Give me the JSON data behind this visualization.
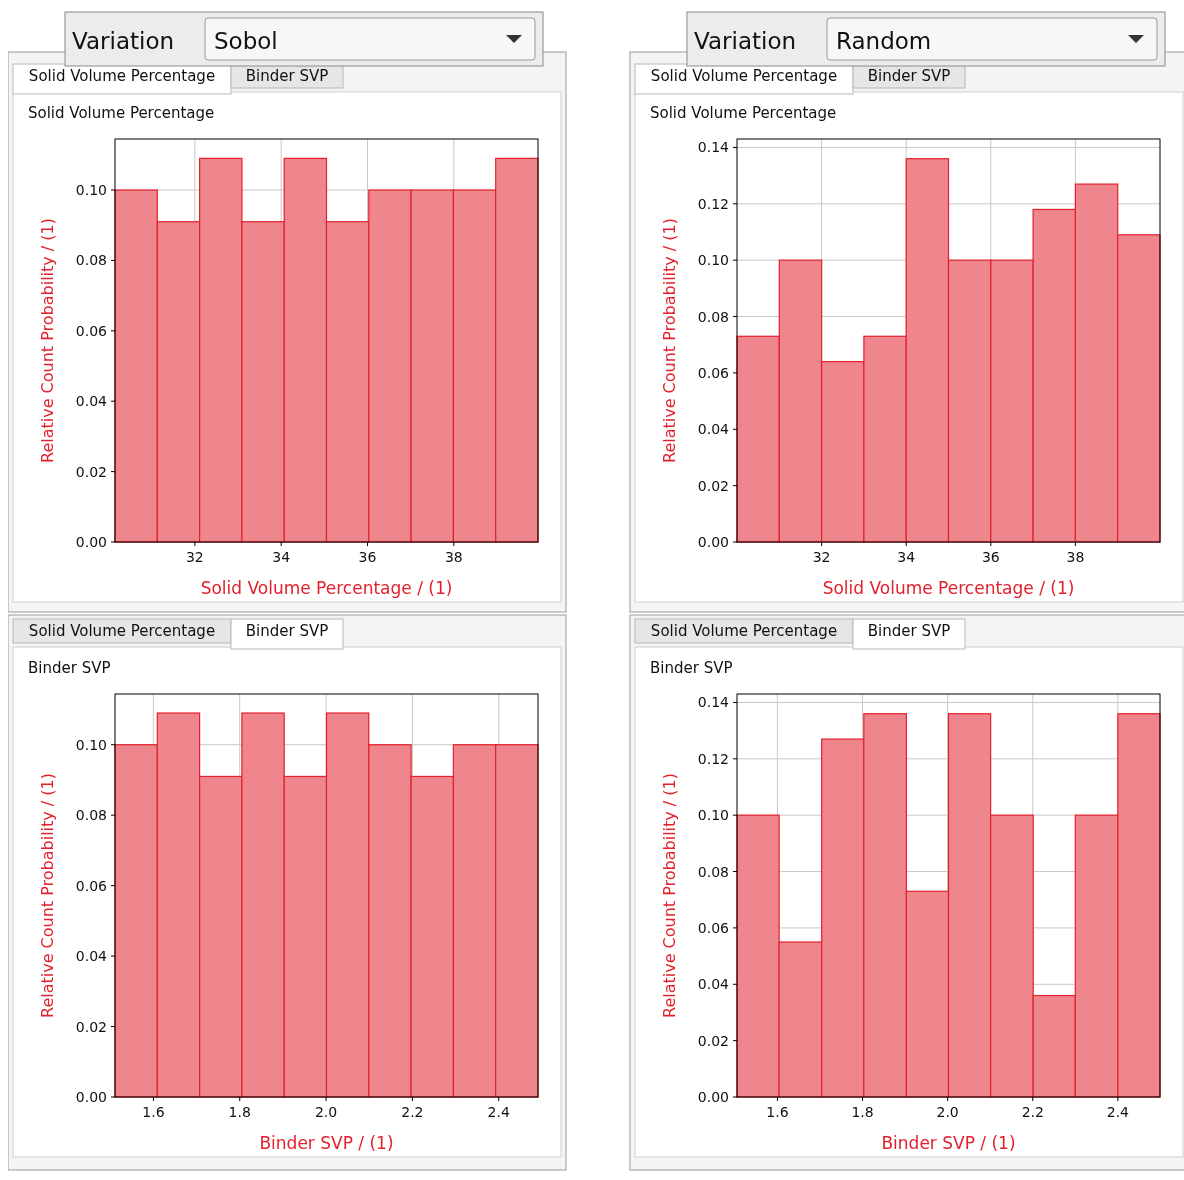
{
  "chart_data": [
    {
      "type": "histogram",
      "title": "Solid Volume Percentage",
      "xlabel": "Solid Volume Percentage / (1)",
      "ylabel": "Relative Count Probability / (1)",
      "annotations": [
        "Variation",
        "Sobol",
        "Solid Volume Percentage",
        "Binder SVP"
      ],
      "color": "#ef868e",
      "grid": true,
      "bins": [
        30.15,
        31.13,
        32.11,
        33.09,
        34.07,
        35.05,
        36.03,
        37.01,
        37.99,
        38.97,
        39.95
      ],
      "values": [
        0.1,
        0.091,
        0.109,
        0.091,
        0.109,
        0.091,
        0.1,
        0.1,
        0.1,
        0.109
      ],
      "xlim": [
        30.15,
        39.95
      ],
      "xticks": [
        32,
        34,
        36,
        38
      ],
      "ylim": [
        0,
        0.1145
      ],
      "yticks": [
        {
          "value": 0,
          "label": "0.00"
        },
        {
          "value": 0.02,
          "label": "0.02"
        },
        {
          "value": 0.04,
          "label": "0.04"
        },
        {
          "value": 0.06,
          "label": "0.06"
        },
        {
          "value": 0.08,
          "label": "0.08"
        },
        {
          "value": 0.1,
          "label": "0.10"
        }
      ]
    },
    {
      "type": "histogram",
      "title": "Solid Volume Percentage",
      "xlabel": "Solid Volume Percentage / (1)",
      "ylabel": "Relative Count Probability / (1)",
      "annotations": [
        "Variation",
        "Random",
        "Solid Volume Percentage",
        "Binder SVP"
      ],
      "color": "#ef868e",
      "grid": true,
      "bins": [
        30,
        31,
        32,
        33,
        34,
        35,
        36,
        37,
        38,
        39,
        40
      ],
      "values": [
        0.073,
        0.1,
        0.064,
        0.073,
        0.136,
        0.1,
        0.1,
        0.118,
        0.127,
        0.109
      ],
      "xlim": [
        30,
        40
      ],
      "xticks": [
        32,
        34,
        36,
        38
      ],
      "ylim": [
        0,
        0.143
      ],
      "yticks": [
        {
          "value": 0,
          "label": "0.00"
        },
        {
          "value": 0.02,
          "label": "0.02"
        },
        {
          "value": 0.04,
          "label": "0.04"
        },
        {
          "value": 0.06,
          "label": "0.06"
        },
        {
          "value": 0.08,
          "label": "0.08"
        },
        {
          "value": 0.1,
          "label": "0.10"
        },
        {
          "value": 0.12,
          "label": "0.12"
        },
        {
          "value": 0.14,
          "label": "0.14"
        }
      ]
    },
    {
      "type": "histogram",
      "title": "Binder SVP",
      "xlabel": "Binder SVP / (1)",
      "ylabel": "Relative Count Probability / (1)",
      "annotations": [
        "Solid Volume Percentage",
        "Binder SVP"
      ],
      "color": "#ef868e",
      "grid": true,
      "bins": [
        1.511,
        1.609,
        1.707,
        1.805,
        1.903,
        2.001,
        2.099,
        2.197,
        2.295,
        2.393,
        2.491
      ],
      "values": [
        0.1,
        0.109,
        0.091,
        0.109,
        0.091,
        0.109,
        0.1,
        0.091,
        0.1,
        0.1
      ],
      "xlim": [
        1.511,
        2.491
      ],
      "xticks": [
        1.6,
        1.8,
        {
          "value": 2,
          "label": "2.0"
        },
        2.2,
        2.4
      ],
      "ylim": [
        0,
        0.1144
      ],
      "yticks": [
        {
          "value": 0,
          "label": "0.00"
        },
        {
          "value": 0.02,
          "label": "0.02"
        },
        {
          "value": 0.04,
          "label": "0.04"
        },
        {
          "value": 0.06,
          "label": "0.06"
        },
        {
          "value": 0.08,
          "label": "0.08"
        },
        {
          "value": 0.1,
          "label": "0.10"
        }
      ]
    },
    {
      "type": "histogram",
      "title": "Binder SVP",
      "xlabel": "Binder SVP / (1)",
      "ylabel": "Relative Count Probability / (1)",
      "annotations": [
        "Solid Volume Percentage",
        "Binder SVP"
      ],
      "color": "#ef868e",
      "grid": true,
      "bins": [
        1.505,
        1.604,
        1.704,
        1.803,
        1.903,
        2.002,
        2.101,
        2.201,
        2.3,
        2.4,
        2.499
      ],
      "values": [
        0.1,
        0.055,
        0.127,
        0.136,
        0.073,
        0.136,
        0.1,
        0.036,
        0.1,
        0.136
      ],
      "xlim": [
        1.505,
        2.499
      ],
      "xticks": [
        1.6,
        1.8,
        {
          "value": 2,
          "label": "2.0"
        },
        2.2,
        2.4
      ],
      "ylim": [
        0,
        0.143
      ],
      "yticks": [
        {
          "value": 0,
          "label": "0.00"
        },
        {
          "value": 0.02,
          "label": "0.02"
        },
        {
          "value": 0.04,
          "label": "0.04"
        },
        {
          "value": 0.06,
          "label": "0.06"
        },
        {
          "value": 0.08,
          "label": "0.08"
        },
        {
          "value": 0.1,
          "label": "0.10"
        },
        {
          "value": 0.12,
          "label": "0.12"
        },
        {
          "value": 0.14,
          "label": "0.14"
        }
      ]
    }
  ]
}
